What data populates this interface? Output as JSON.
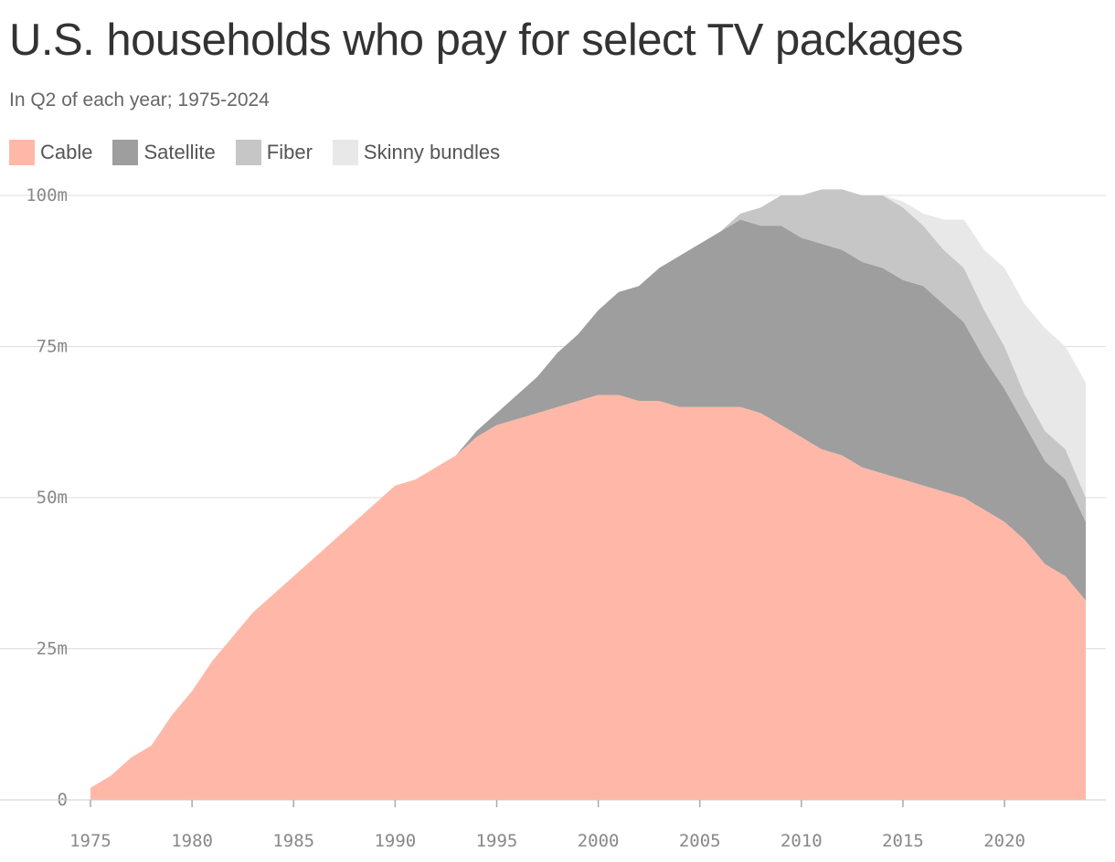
{
  "header": {
    "title": "U.S. households who pay for select TV packages",
    "subtitle": "In Q2 of each year; 1975-2024"
  },
  "colors": {
    "cable": "#FFB8A8",
    "satellite": "#9E9E9E",
    "fiber": "#C6C6C6",
    "skinny": "#E8E8E8",
    "grid": "#DDDDDD"
  },
  "chart_data": {
    "type": "area",
    "stacked": true,
    "title": "U.S. households who pay for select TV packages",
    "subtitle": "In Q2 of each year; 1975-2024",
    "xlabel": "",
    "ylabel": "",
    "xlim": [
      1975,
      2024
    ],
    "ylim": [
      0,
      100
    ],
    "grid": true,
    "legend_position": "top-left",
    "x_ticks": [
      1975,
      1980,
      1985,
      1990,
      1995,
      2000,
      2005,
      2010,
      2015,
      2020
    ],
    "x_tick_labels": [
      "1975",
      "1980",
      "1985",
      "1990",
      "1995",
      "2000",
      "2005",
      "2010",
      "2015",
      "2020"
    ],
    "y_ticks": [
      0,
      25,
      50,
      75,
      100
    ],
    "y_tick_labels": [
      "0",
      "25m",
      "50m",
      "75m",
      "100m"
    ],
    "x": [
      1975,
      1976,
      1977,
      1978,
      1979,
      1980,
      1981,
      1982,
      1983,
      1984,
      1985,
      1986,
      1987,
      1988,
      1989,
      1990,
      1991,
      1992,
      1993,
      1994,
      1995,
      1996,
      1997,
      1998,
      1999,
      2000,
      2001,
      2002,
      2003,
      2004,
      2005,
      2006,
      2007,
      2008,
      2009,
      2010,
      2011,
      2012,
      2013,
      2014,
      2015,
      2016,
      2017,
      2018,
      2019,
      2020,
      2021,
      2022,
      2023,
      2024
    ],
    "series": [
      {
        "name": "Cable",
        "values": [
          2,
          4,
          7,
          9,
          14,
          18,
          23,
          27,
          31,
          34,
          37,
          40,
          43,
          46,
          49,
          52,
          53,
          55,
          57,
          60,
          62,
          63,
          64,
          65,
          66,
          67,
          67,
          66,
          66,
          65,
          65,
          65,
          65,
          64,
          62,
          60,
          58,
          57,
          55,
          54,
          53,
          52,
          51,
          50,
          48,
          46,
          43,
          39,
          37,
          33
        ]
      },
      {
        "name": "Satellite",
        "values": [
          0,
          0,
          0,
          0,
          0,
          0,
          0,
          0,
          0,
          0,
          0,
          0,
          0,
          0,
          0,
          0,
          0,
          0,
          0,
          1,
          2,
          4,
          6,
          9,
          11,
          14,
          17,
          19,
          22,
          25,
          27,
          29,
          31,
          31,
          33,
          33,
          34,
          34,
          34,
          34,
          33,
          33,
          31,
          29,
          25,
          22,
          19,
          17,
          16,
          13
        ]
      },
      {
        "name": "Fiber",
        "values": [
          0,
          0,
          0,
          0,
          0,
          0,
          0,
          0,
          0,
          0,
          0,
          0,
          0,
          0,
          0,
          0,
          0,
          0,
          0,
          0,
          0,
          0,
          0,
          0,
          0,
          0,
          0,
          0,
          0,
          0,
          0,
          0,
          1,
          3,
          5,
          7,
          9,
          10,
          11,
          12,
          12,
          10,
          9,
          9,
          8,
          7,
          5,
          5,
          5,
          4
        ]
      },
      {
        "name": "Skinny bundles",
        "values": [
          0,
          0,
          0,
          0,
          0,
          0,
          0,
          0,
          0,
          0,
          0,
          0,
          0,
          0,
          0,
          0,
          0,
          0,
          0,
          0,
          0,
          0,
          0,
          0,
          0,
          0,
          0,
          0,
          0,
          0,
          0,
          0,
          0,
          0,
          0,
          0,
          0,
          0,
          0,
          0,
          1,
          2,
          5,
          8,
          10,
          13,
          15,
          17,
          17,
          19
        ]
      }
    ]
  }
}
